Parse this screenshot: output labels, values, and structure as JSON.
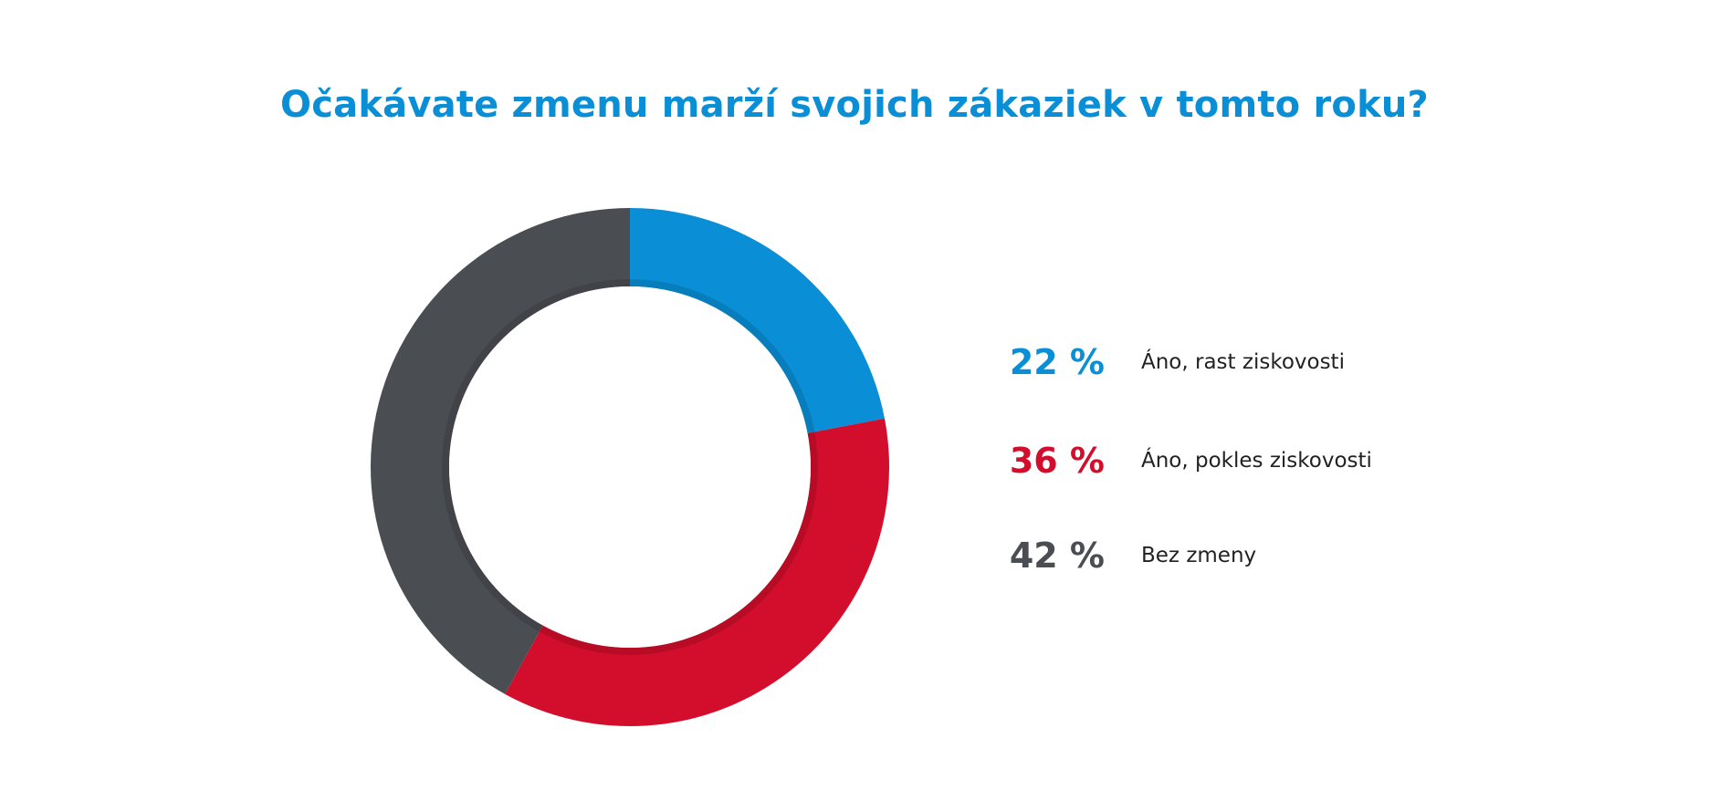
{
  "chart_data": {
    "type": "pie",
    "title": "Očakávate zmenu marží svojich zákaziek v tomto roku?",
    "donut": true,
    "legend_position": "right",
    "slices": [
      {
        "label": "Áno, rast ziskovosti",
        "value": 22,
        "display": "22 %",
        "color": "#0a8fd6"
      },
      {
        "label": "Áno, pokles ziskovosti",
        "value": 36,
        "display": "36 %",
        "color": "#d20e2c"
      },
      {
        "label": "Bez zmeny",
        "value": 42,
        "display": "42 %",
        "color": "#4a4d52"
      }
    ]
  }
}
